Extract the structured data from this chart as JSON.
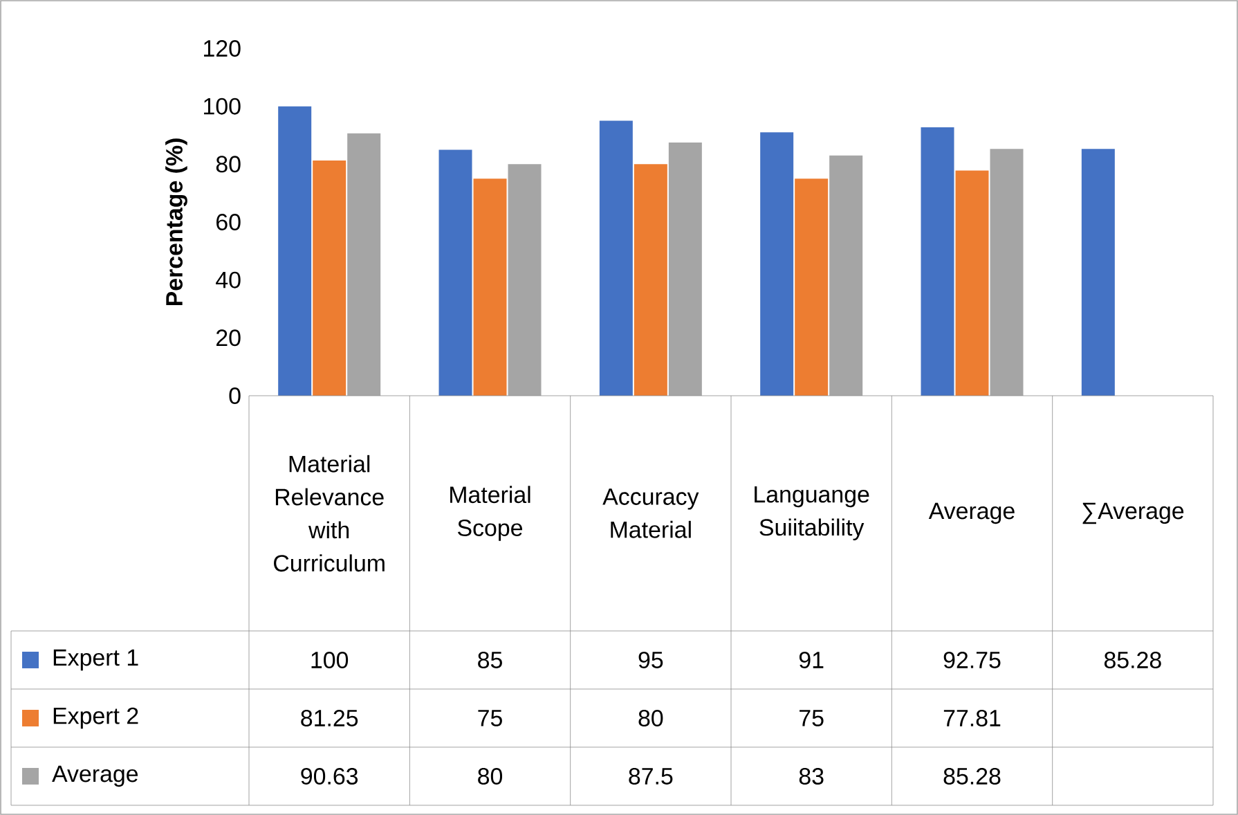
{
  "chart_data": {
    "type": "bar",
    "ylabel": "Percentage  (%)",
    "categories": [
      "Material Relevance with Curriculum",
      "Material Scope",
      "Accuracy Material",
      "Languange Suiitability",
      "Average",
      "∑Average"
    ],
    "series": [
      {
        "name": "Expert 1",
        "color": "#4472c4",
        "values": [
          100,
          85,
          95,
          91,
          92.75,
          85.28
        ]
      },
      {
        "name": "Expert 2",
        "color": "#ed7d31",
        "values": [
          81.25,
          75,
          80,
          75,
          77.81,
          null
        ]
      },
      {
        "name": "Average",
        "color": "#a5a5a5",
        "values": [
          90.63,
          80,
          87.5,
          83,
          85.28,
          null
        ]
      }
    ],
    "ylim": [
      0,
      120
    ],
    "yticks": [
      0,
      20,
      40,
      60,
      80,
      100,
      120
    ],
    "data_labels": true,
    "legend": "bottom left"
  }
}
